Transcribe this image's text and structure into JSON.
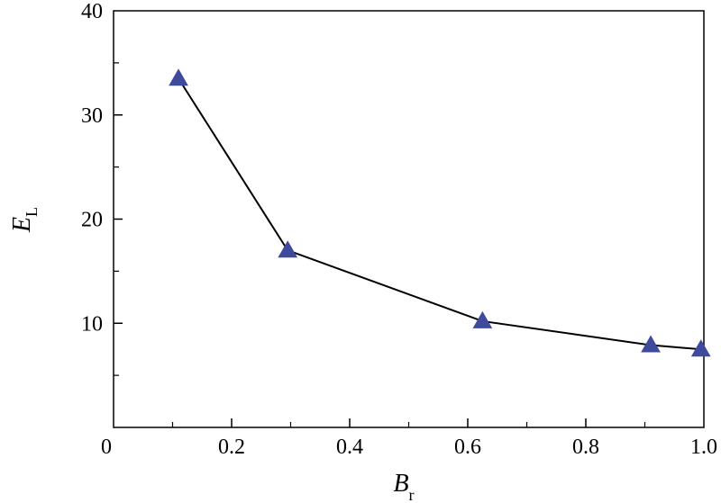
{
  "chart_data": {
    "type": "line",
    "title": "",
    "xlabel": "B",
    "xlabel_subscript": "r",
    "ylabel": "E",
    "ylabel_subscript": "L",
    "xlim": [
      0,
      1.0
    ],
    "ylim": [
      0,
      40
    ],
    "xticks": [
      0,
      0.2,
      0.4,
      0.6,
      0.8,
      1.0
    ],
    "xtick_labels": [
      "0",
      "0.2",
      "0.4",
      "0.6",
      "0.8",
      "1.0"
    ],
    "yticks": [
      10,
      20,
      30,
      40
    ],
    "ytick_labels": [
      "10",
      "20",
      "30",
      "40"
    ],
    "grid": false,
    "legend": "none",
    "series": [
      {
        "x": [
          0.11,
          0.295,
          0.625,
          0.91,
          0.995
        ],
        "values": [
          33.5,
          17.0,
          10.2,
          7.9,
          7.5
        ],
        "line_color": "#000000",
        "marker": "triangle",
        "marker_color": "#3f4a9c"
      }
    ]
  }
}
